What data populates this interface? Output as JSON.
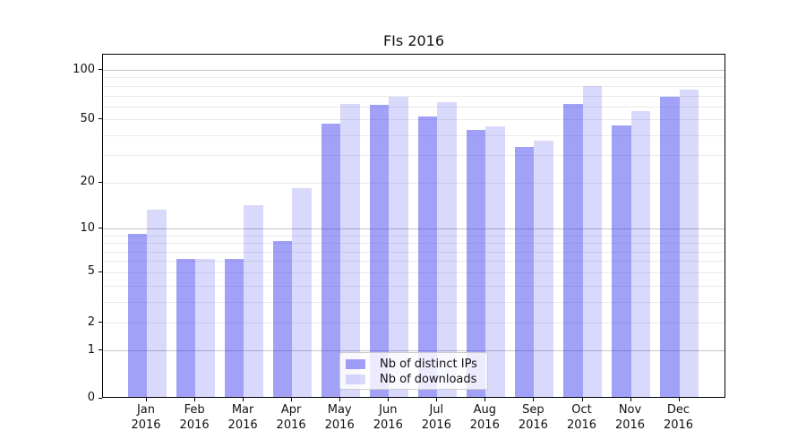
{
  "title": "FIs 2016",
  "chart_data": {
    "type": "bar",
    "title": "FIs 2016",
    "categories": [
      "Jan",
      "Feb",
      "Mar",
      "Apr",
      "May",
      "Jun",
      "Jul",
      "Aug",
      "Sep",
      "Oct",
      "Nov",
      "Dec"
    ],
    "year_label": "2016",
    "series": [
      {
        "name": "Nb of distinct IPs",
        "color": "rgba(55,55,238,0.47)",
        "values": [
          9,
          6,
          6,
          8,
          46,
          60,
          51,
          42,
          33,
          61,
          45,
          67
        ]
      },
      {
        "name": "Nb of downloads",
        "color": "rgba(55,55,238,0.19)",
        "values": [
          13,
          6,
          14,
          18,
          61,
          67,
          62,
          44,
          36,
          78,
          55,
          74
        ]
      }
    ],
    "xlabel": "",
    "ylabel": "",
    "y_scale": "log1p",
    "y_tick_labels": [
      "0",
      "1",
      "2",
      "5",
      "10",
      "20",
      "50",
      "100"
    ],
    "y_ticks": [
      0,
      1,
      2,
      5,
      10,
      20,
      50,
      100
    ],
    "ylim": [
      0,
      122
    ],
    "grid_major_at": [
      1,
      10,
      100
    ],
    "grid_minor_at": [
      2,
      3,
      4,
      5,
      6,
      7,
      8,
      9,
      20,
      30,
      40,
      50,
      60,
      70,
      80,
      90
    ],
    "legend_position": "lower center",
    "grid": "horizontal"
  },
  "colors": {
    "bar_dark_hex": "#a5a5f6",
    "bar_light_hex": "#d9d9fb",
    "grid_major": "#c3c3c3",
    "grid_minor": "#eaeaea",
    "spine": "#000000"
  }
}
